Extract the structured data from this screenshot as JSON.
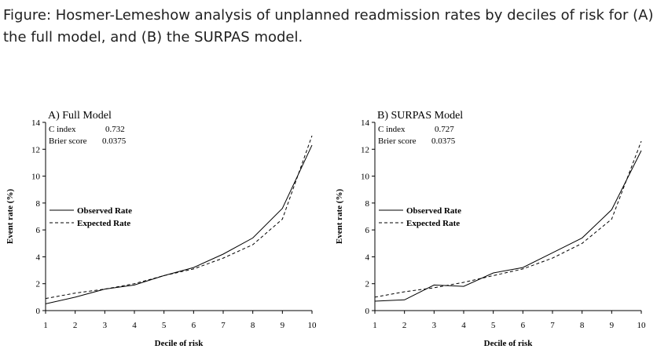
{
  "caption": "Figure: Hosmer-Lemeshow analysis of unplanned readmission rates by deciles of risk for (A) the full model, and (B) the SURPAS model.",
  "chart_data": [
    {
      "type": "line",
      "title": "A) Full Model",
      "xlabel": "Decile of risk",
      "ylabel": "Event rate (%)",
      "xlim": [
        1,
        10
      ],
      "ylim": [
        0,
        14
      ],
      "x_ticks": [
        1,
        2,
        3,
        4,
        5,
        6,
        7,
        8,
        9,
        10
      ],
      "y_ticks": [
        0,
        2,
        4,
        6,
        8,
        10,
        12,
        14
      ],
      "stats": [
        {
          "label": "C index",
          "value": "0.732"
        },
        {
          "label": "Brier score",
          "value": "0.0375"
        }
      ],
      "legend_position": "middle-left",
      "grid": false,
      "x": [
        1,
        2,
        3,
        4,
        5,
        6,
        7,
        8,
        9,
        10
      ],
      "series": [
        {
          "name": "Observed Rate",
          "style": "solid",
          "values": [
            0.5,
            1.0,
            1.6,
            1.9,
            2.6,
            3.2,
            4.2,
            5.4,
            7.6,
            12.3
          ]
        },
        {
          "name": "Expected Rate",
          "style": "dashed",
          "values": [
            0.9,
            1.3,
            1.6,
            2.0,
            2.6,
            3.1,
            3.9,
            4.9,
            6.8,
            13.0
          ]
        }
      ]
    },
    {
      "type": "line",
      "title": "B) SURPAS Model",
      "xlabel": "Decile of risk",
      "ylabel": "Event rate (%)",
      "xlim": [
        1,
        10
      ],
      "ylim": [
        0,
        14
      ],
      "x_ticks": [
        1,
        2,
        3,
        4,
        5,
        6,
        7,
        8,
        9,
        10
      ],
      "y_ticks": [
        0,
        2,
        4,
        6,
        8,
        10,
        12,
        14
      ],
      "stats": [
        {
          "label": "C index",
          "value": "0.727"
        },
        {
          "label": "Brier score",
          "value": "0.0375"
        }
      ],
      "legend_position": "middle-left",
      "grid": false,
      "x": [
        1,
        2,
        3,
        4,
        5,
        6,
        7,
        8,
        9,
        10
      ],
      "series": [
        {
          "name": "Observed Rate",
          "style": "solid",
          "values": [
            0.7,
            0.8,
            1.9,
            1.8,
            2.8,
            3.2,
            4.3,
            5.4,
            7.5,
            11.9
          ]
        },
        {
          "name": "Expected Rate",
          "style": "dashed",
          "values": [
            1.0,
            1.4,
            1.7,
            2.1,
            2.6,
            3.1,
            3.9,
            5.0,
            6.8,
            12.6
          ]
        }
      ]
    }
  ]
}
